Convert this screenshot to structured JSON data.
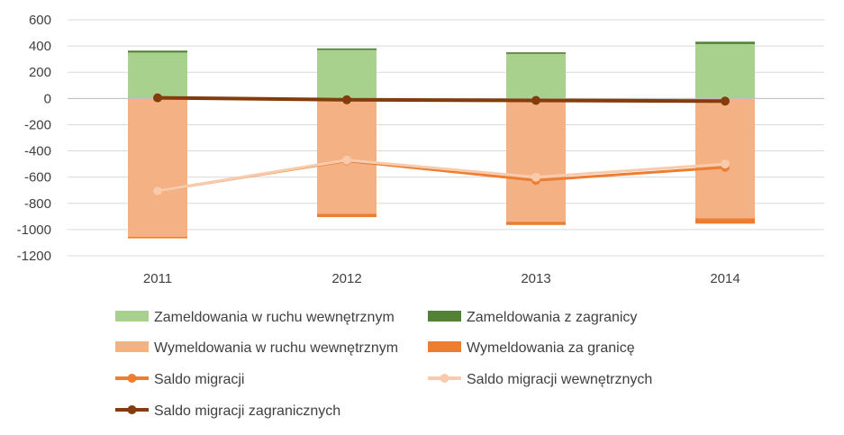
{
  "chart_data": {
    "type": "bar",
    "subtype": "stacked-bar-with-lines",
    "categories": [
      "2011",
      "2012",
      "2013",
      "2014"
    ],
    "ylim": [
      -1200,
      600
    ],
    "yticks": [
      600,
      400,
      200,
      0,
      -200,
      -400,
      -600,
      -800,
      -1000,
      -1200
    ],
    "ytick_labels": [
      "600",
      "400",
      "200",
      "0",
      "-200",
      "-400",
      "-600",
      "-800",
      "-1000",
      "-1200"
    ],
    "grid": true,
    "bar_series": [
      {
        "name": "Zameldowania w ruchu wewnętrznym",
        "values": [
          350,
          370,
          340,
          415
        ],
        "color": "#a9d18e",
        "stack": "pos"
      },
      {
        "name": "Zameldowania z zagranicy",
        "values": [
          15,
          12,
          12,
          18
        ],
        "color": "#548235",
        "stack": "pos"
      },
      {
        "name": "Wymeldowania w ruchu wewnętrznym",
        "values": [
          -1055,
          -880,
          -940,
          -915
        ],
        "color": "#f4b183",
        "stack": "neg"
      },
      {
        "name": "Wymeldowania za granicę",
        "values": [
          -12,
          -25,
          -25,
          -40
        ],
        "color": "#ed7d31",
        "stack": "neg"
      }
    ],
    "line_series": [
      {
        "name": "Saldo migracji",
        "values": [
          -705,
          -475,
          -625,
          -525
        ],
        "color": "#ed7d31"
      },
      {
        "name": "Saldo migracji wewnętrznych",
        "values": [
          -705,
          -470,
          -600,
          -500
        ],
        "color": "#f8cbad"
      },
      {
        "name": "Saldo migracji zagranicznych",
        "values": [
          5,
          -10,
          -15,
          -20
        ],
        "color": "#843c0c"
      }
    ],
    "legend_position": "bottom"
  }
}
